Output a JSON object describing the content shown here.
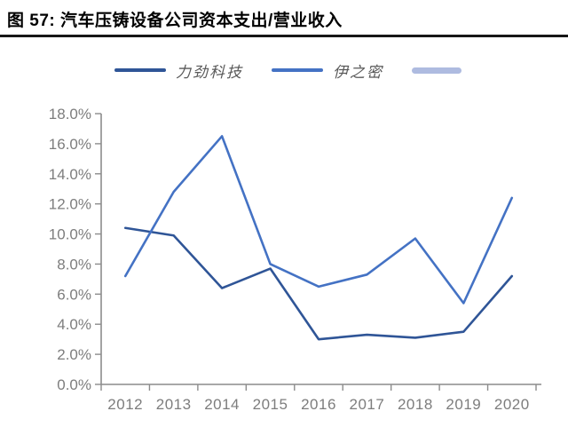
{
  "figure": {
    "title": "图 57:  汽车压铸设备公司资本支出/营业收入"
  },
  "colors": {
    "title_text": "#000000",
    "title_rule": "#161616",
    "axis": "#8c8c8c",
    "tick_label": "#7d7d7d",
    "legend_label": "#595959",
    "series_likin": "#2f5597",
    "series_yizumi": "#4472c4",
    "legend_extra": "#aebbe0"
  },
  "legend": {
    "items": [
      {
        "label": "力劲科技",
        "color": "#2f5597",
        "style": "line"
      },
      {
        "label": "伊之密",
        "color": "#4472c4",
        "style": "line"
      },
      {
        "label": "",
        "color": "#aebbe0",
        "style": "thick-line"
      }
    ]
  },
  "chart_data": {
    "type": "line",
    "title": "汽车压铸设备公司资本支出/营业收入",
    "categories": [
      "2012",
      "2013",
      "2014",
      "2015",
      "2016",
      "2017",
      "2018",
      "2019",
      "2020"
    ],
    "series": [
      {
        "name": "力劲科技",
        "color": "#2f5597",
        "values": [
          10.4,
          9.9,
          6.4,
          7.7,
          3.0,
          3.3,
          3.1,
          3.5,
          7.2
        ]
      },
      {
        "name": "伊之密",
        "color": "#4472c4",
        "values": [
          7.2,
          12.8,
          16.5,
          8.0,
          6.5,
          7.3,
          9.7,
          5.4,
          12.4
        ]
      }
    ],
    "xlabel": "",
    "ylabel": "",
    "unit": "percent",
    "ylim": [
      0,
      18
    ],
    "ytick_step": 2,
    "ytick_labels": [
      "0.0%",
      "2.0%",
      "4.0%",
      "6.0%",
      "8.0%",
      "10.0%",
      "12.0%",
      "14.0%",
      "16.0%",
      "18.0%"
    ],
    "grid": false,
    "legend_position": "top"
  }
}
